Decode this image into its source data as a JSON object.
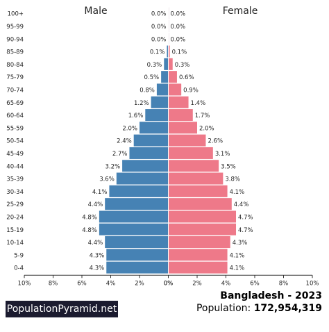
{
  "chart_data": {
    "type": "bar",
    "subtype": "population-pyramid",
    "categories": [
      "100+",
      "95-99",
      "90-94",
      "85-89",
      "80-84",
      "75-79",
      "70-74",
      "65-69",
      "60-64",
      "55-59",
      "50-54",
      "45-49",
      "40-44",
      "35-39",
      "30-34",
      "25-29",
      "20-24",
      "15-19",
      "10-14",
      "5-9",
      "0-4"
    ],
    "series": [
      {
        "name": "Male",
        "color": "#4682b4",
        "values": [
          0.0,
          0.0,
          0.0,
          0.1,
          0.3,
          0.5,
          0.8,
          1.2,
          1.6,
          2.0,
          2.4,
          2.7,
          3.2,
          3.6,
          4.1,
          4.4,
          4.8,
          4.8,
          4.4,
          4.3,
          4.3
        ],
        "labels": [
          "0.0%",
          "0.0%",
          "0.0%",
          "0.1%",
          "0.3%",
          "0.5%",
          "0.8%",
          "1.2%",
          "1.6%",
          "2.0%",
          "2.4%",
          "2.7%",
          "3.2%",
          "3.6%",
          "4.1%",
          "4.4%",
          "4.8%",
          "4.8%",
          "4.4%",
          "4.3%",
          "4.3%"
        ]
      },
      {
        "name": "Female",
        "color": "#ee7989",
        "values": [
          0.0,
          0.0,
          0.0,
          0.1,
          0.3,
          0.6,
          0.9,
          1.4,
          1.7,
          2.0,
          2.6,
          3.1,
          3.5,
          3.8,
          4.1,
          4.4,
          4.7,
          4.7,
          4.3,
          4.1,
          4.1
        ],
        "labels": [
          "0.0%",
          "0.0%",
          "0.0%",
          "0.1%",
          "0.3%",
          "0.6%",
          "0.9%",
          "1.4%",
          "1.7%",
          "2.0%",
          "2.6%",
          "3.1%",
          "3.5%",
          "3.8%",
          "4.1%",
          "4.4%",
          "4.7%",
          "4.7%",
          "4.3%",
          "4.1%",
          "4.1%"
        ]
      }
    ],
    "xlim": [
      0,
      10
    ],
    "xticks": [
      "10%",
      "8%",
      "6%",
      "4%",
      "2%",
      "0%",
      "0%",
      "2%",
      "4%",
      "6%",
      "8%",
      "10%"
    ],
    "xtick_values": [
      10,
      8,
      6,
      4,
      2,
      0,
      0,
      2,
      4,
      6,
      8,
      10
    ]
  },
  "brand": "PopulationPyramid.net",
  "country_year": "Bangladesh - 2023",
  "population_label": "Population:",
  "population_value": "172,954,319"
}
